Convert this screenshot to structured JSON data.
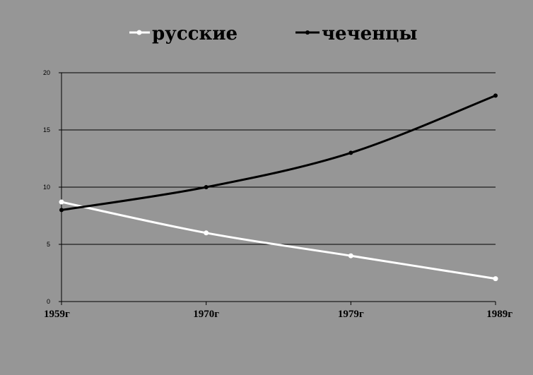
{
  "chart_data": {
    "type": "line",
    "categories": [
      "1959г",
      "1970г",
      "1979г",
      "1989г"
    ],
    "series": [
      {
        "name": "русские",
        "values": [
          8.7,
          6,
          4,
          2
        ],
        "color": "#ffffff"
      },
      {
        "name": "чеченцы",
        "values": [
          8,
          10,
          13,
          18
        ],
        "color": "#000000"
      }
    ],
    "yticks": [
      "0",
      "5",
      "10",
      "15",
      "20"
    ],
    "ylim": [
      0,
      20
    ],
    "grid": true,
    "legend": "top-center"
  }
}
